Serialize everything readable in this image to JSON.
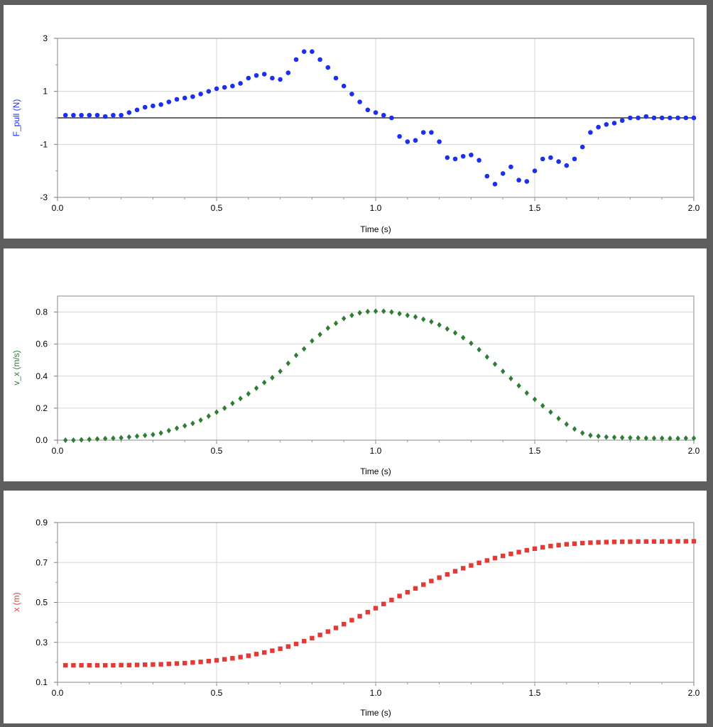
{
  "charts": [
    {
      "type": "scatter",
      "name": "force",
      "ylabel": "F_pull (N)",
      "xlabel": "Time (s)",
      "xlim": [
        0,
        2.0
      ],
      "ylim": [
        -3,
        3
      ],
      "yticks": [
        -3,
        -1,
        1,
        3
      ],
      "ytick_labels": [
        "-3",
        "-1",
        "1",
        "3"
      ],
      "yminor": [
        -2,
        0,
        2
      ],
      "xticks": [
        0,
        0.5,
        1.0,
        1.5,
        2.0
      ],
      "xtick_labels": [
        "0.0",
        "0.5",
        "1.0",
        "1.5",
        "2.0"
      ],
      "zero_line": true,
      "color": "#1a2ff0",
      "label_color": "#1a2ff0",
      "marker": "circle",
      "series": [
        {
          "name": "F_pull",
          "x": [
            0.025,
            0.05,
            0.075,
            0.1,
            0.125,
            0.15,
            0.175,
            0.2,
            0.225,
            0.25,
            0.275,
            0.3,
            0.325,
            0.35,
            0.375,
            0.4,
            0.425,
            0.45,
            0.475,
            0.5,
            0.525,
            0.55,
            0.575,
            0.6,
            0.625,
            0.65,
            0.675,
            0.7,
            0.725,
            0.75,
            0.775,
            0.8,
            0.825,
            0.85,
            0.875,
            0.9,
            0.925,
            0.95,
            0.975,
            1.0,
            1.025,
            1.05,
            1.075,
            1.1,
            1.125,
            1.15,
            1.175,
            1.2,
            1.225,
            1.25,
            1.275,
            1.3,
            1.325,
            1.35,
            1.375,
            1.4,
            1.425,
            1.45,
            1.475,
            1.5,
            1.525,
            1.55,
            1.575,
            1.6,
            1.625,
            1.65,
            1.675,
            1.7,
            1.725,
            1.75,
            1.775,
            1.8,
            1.825,
            1.85,
            1.875,
            1.9,
            1.925,
            1.95,
            1.975,
            2.0
          ],
          "values": [
            0.1,
            0.1,
            0.1,
            0.1,
            0.1,
            0.05,
            0.1,
            0.1,
            0.2,
            0.3,
            0.4,
            0.45,
            0.5,
            0.6,
            0.7,
            0.75,
            0.8,
            0.9,
            1.0,
            1.1,
            1.15,
            1.2,
            1.3,
            1.5,
            1.6,
            1.65,
            1.5,
            1.45,
            1.7,
            2.2,
            2.5,
            2.5,
            2.2,
            1.9,
            1.5,
            1.2,
            0.9,
            0.6,
            0.3,
            0.2,
            0.1,
            0.0,
            -0.7,
            -0.9,
            -0.85,
            -0.55,
            -0.55,
            -0.9,
            -1.5,
            -1.55,
            -1.45,
            -1.4,
            -1.6,
            -2.2,
            -2.5,
            -2.1,
            -1.85,
            -2.35,
            -2.4,
            -2.0,
            -1.55,
            -1.5,
            -1.65,
            -1.8,
            -1.55,
            -1.1,
            -0.55,
            -0.35,
            -0.25,
            -0.2,
            -0.1,
            0.0,
            0.0,
            0.05,
            0.0,
            0.0,
            0.0,
            0.0,
            0.0,
            0.0
          ]
        }
      ]
    },
    {
      "type": "scatter",
      "name": "velocity",
      "ylabel": "v_x (m/s)",
      "xlabel": "Time (s)",
      "xlim": [
        0,
        2.0
      ],
      "ylim": [
        0,
        0.9
      ],
      "yticks": [
        0.0,
        0.2,
        0.4,
        0.6,
        0.8
      ],
      "ytick_labels": [
        "0.0",
        "0.2",
        "0.4",
        "0.6",
        "0.8"
      ],
      "yminor": [],
      "xticks": [
        0,
        0.5,
        1.0,
        1.5,
        2.0
      ],
      "xtick_labels": [
        "0.0",
        "0.5",
        "1.0",
        "1.5",
        "2.0"
      ],
      "zero_line": false,
      "color": "#2e7d32",
      "label_color": "#2e7d32",
      "marker": "diamond",
      "series": [
        {
          "name": "v_x",
          "x": [
            0.025,
            0.05,
            0.075,
            0.1,
            0.125,
            0.15,
            0.175,
            0.2,
            0.225,
            0.25,
            0.275,
            0.3,
            0.325,
            0.35,
            0.375,
            0.4,
            0.425,
            0.45,
            0.475,
            0.5,
            0.525,
            0.55,
            0.575,
            0.6,
            0.625,
            0.65,
            0.675,
            0.7,
            0.725,
            0.75,
            0.775,
            0.8,
            0.825,
            0.85,
            0.875,
            0.9,
            0.925,
            0.95,
            0.975,
            1.0,
            1.025,
            1.05,
            1.075,
            1.1,
            1.125,
            1.15,
            1.175,
            1.2,
            1.225,
            1.25,
            1.275,
            1.3,
            1.325,
            1.35,
            1.375,
            1.4,
            1.425,
            1.45,
            1.475,
            1.5,
            1.525,
            1.55,
            1.575,
            1.6,
            1.625,
            1.65,
            1.675,
            1.7,
            1.725,
            1.75,
            1.775,
            1.8,
            1.825,
            1.85,
            1.875,
            1.9,
            1.925,
            1.95,
            1.975,
            2.0
          ],
          "values": [
            0.0,
            0.0,
            0.002,
            0.005,
            0.008,
            0.01,
            0.012,
            0.015,
            0.02,
            0.025,
            0.03,
            0.035,
            0.045,
            0.06,
            0.075,
            0.09,
            0.105,
            0.125,
            0.15,
            0.175,
            0.2,
            0.23,
            0.26,
            0.29,
            0.325,
            0.36,
            0.39,
            0.43,
            0.48,
            0.53,
            0.57,
            0.62,
            0.66,
            0.7,
            0.73,
            0.76,
            0.78,
            0.795,
            0.803,
            0.805,
            0.805,
            0.8,
            0.79,
            0.78,
            0.77,
            0.755,
            0.74,
            0.72,
            0.695,
            0.67,
            0.64,
            0.605,
            0.565,
            0.52,
            0.475,
            0.43,
            0.385,
            0.34,
            0.295,
            0.255,
            0.215,
            0.175,
            0.135,
            0.1,
            0.07,
            0.045,
            0.03,
            0.025,
            0.02,
            0.018,
            0.016,
            0.015,
            0.014,
            0.013,
            0.012,
            0.012,
            0.011,
            0.011,
            0.012,
            0.012
          ]
        }
      ]
    },
    {
      "type": "scatter",
      "name": "position",
      "ylabel": "x (m)",
      "xlabel": "Time (s)",
      "xlim": [
        0,
        2.0
      ],
      "ylim": [
        0.1,
        0.9
      ],
      "yticks": [
        0.1,
        0.3,
        0.5,
        0.7,
        0.9
      ],
      "ytick_labels": [
        "0.1",
        "0.3",
        "0.5",
        "0.7",
        "0.9"
      ],
      "yminor": [
        0.2,
        0.4,
        0.6,
        0.8
      ],
      "xticks": [
        0,
        0.5,
        1.0,
        1.5,
        2.0
      ],
      "xtick_labels": [
        "0.0",
        "0.5",
        "1.0",
        "1.5",
        "2.0"
      ],
      "zero_line": false,
      "color": "#e53935",
      "label_color": "#e53935",
      "marker": "square",
      "series": [
        {
          "name": "x",
          "x": [
            0.025,
            0.05,
            0.075,
            0.1,
            0.125,
            0.15,
            0.175,
            0.2,
            0.225,
            0.25,
            0.275,
            0.3,
            0.325,
            0.35,
            0.375,
            0.4,
            0.425,
            0.45,
            0.475,
            0.5,
            0.525,
            0.55,
            0.575,
            0.6,
            0.625,
            0.65,
            0.675,
            0.7,
            0.725,
            0.75,
            0.775,
            0.8,
            0.825,
            0.85,
            0.875,
            0.9,
            0.925,
            0.95,
            0.975,
            1.0,
            1.025,
            1.05,
            1.075,
            1.1,
            1.125,
            1.15,
            1.175,
            1.2,
            1.225,
            1.25,
            1.275,
            1.3,
            1.325,
            1.35,
            1.375,
            1.4,
            1.425,
            1.45,
            1.475,
            1.5,
            1.525,
            1.55,
            1.575,
            1.6,
            1.625,
            1.65,
            1.675,
            1.7,
            1.725,
            1.75,
            1.775,
            1.8,
            1.825,
            1.85,
            1.875,
            1.9,
            1.925,
            1.95,
            1.975,
            2.0
          ],
          "values": [
            0.185,
            0.185,
            0.185,
            0.185,
            0.185,
            0.185,
            0.185,
            0.186,
            0.186,
            0.187,
            0.188,
            0.189,
            0.19,
            0.192,
            0.194,
            0.196,
            0.199,
            0.202,
            0.206,
            0.21,
            0.215,
            0.22,
            0.226,
            0.233,
            0.241,
            0.249,
            0.258,
            0.268,
            0.279,
            0.292,
            0.306,
            0.321,
            0.337,
            0.354,
            0.372,
            0.391,
            0.411,
            0.431,
            0.451,
            0.471,
            0.492,
            0.512,
            0.532,
            0.551,
            0.57,
            0.589,
            0.607,
            0.624,
            0.64,
            0.656,
            0.671,
            0.685,
            0.698,
            0.71,
            0.722,
            0.733,
            0.743,
            0.752,
            0.761,
            0.769,
            0.776,
            0.782,
            0.787,
            0.791,
            0.794,
            0.797,
            0.799,
            0.801,
            0.802,
            0.803,
            0.804,
            0.804,
            0.805,
            0.805,
            0.805,
            0.805,
            0.805,
            0.806,
            0.806,
            0.806
          ]
        }
      ]
    }
  ]
}
